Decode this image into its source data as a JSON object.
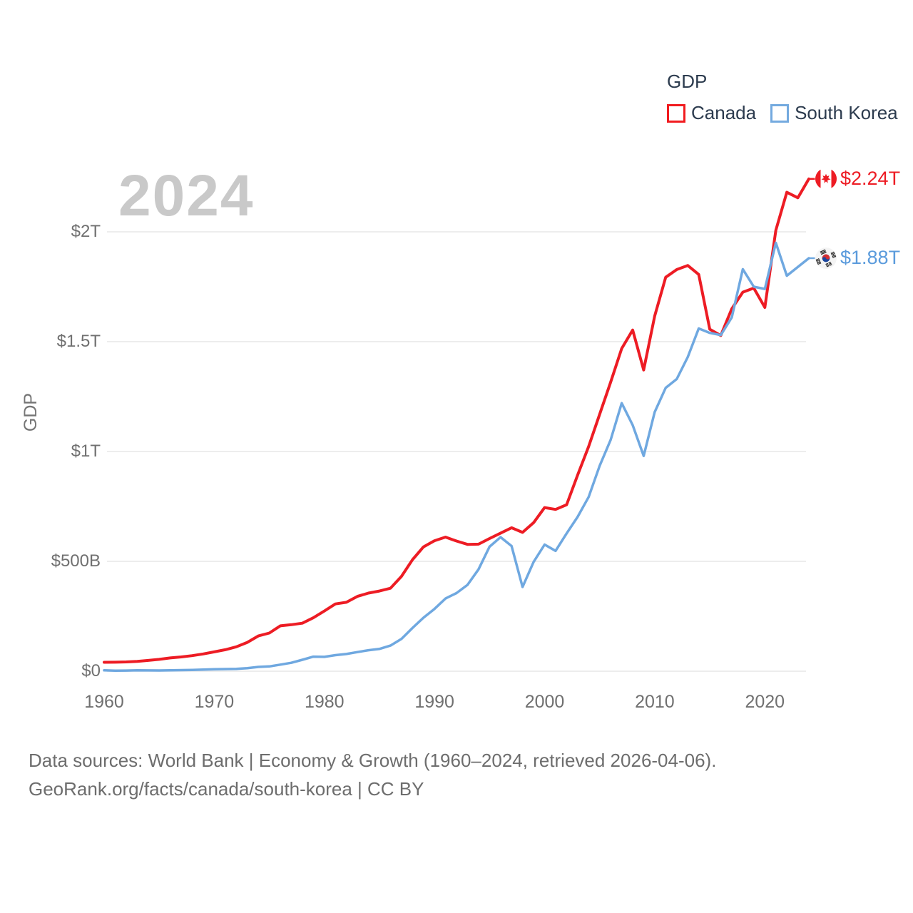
{
  "legend": {
    "title": "GDP",
    "items": [
      {
        "label": "Canada",
        "color": "#ed1c24"
      },
      {
        "label": "South Korea",
        "color": "#74aadf"
      }
    ]
  },
  "watermark_year": "2024",
  "footer": {
    "line1": "Data sources: World Bank | Economy & Growth (1960–2024, retrieved 2026-04-06).",
    "line2": "GeoRank.org/facts/canada/south-korea | CC BY"
  },
  "chart_data": {
    "type": "line",
    "title": "GDP",
    "ylabel": "GDP",
    "unit": "billion USD",
    "grid": "horizontal",
    "ylim_billion": [
      0,
      2300
    ],
    "xlim_year": [
      1960,
      2024
    ],
    "y_ticks": [
      {
        "label": "$0",
        "value": 0
      },
      {
        "label": "$500B",
        "value": 500
      },
      {
        "label": "$1T",
        "value": 1000
      },
      {
        "label": "$1.5T",
        "value": 1500
      },
      {
        "label": "$2T",
        "value": 2000
      }
    ],
    "x_ticks": [
      {
        "label": "1960",
        "year": 1960
      },
      {
        "label": "1970",
        "year": 1970
      },
      {
        "label": "1980",
        "year": 1980
      },
      {
        "label": "1990",
        "year": 1990
      },
      {
        "label": "2000",
        "year": 2000
      },
      {
        "label": "2010",
        "year": 2010
      },
      {
        "label": "2020",
        "year": 2020
      }
    ],
    "years": [
      1960,
      1961,
      1962,
      1963,
      1964,
      1965,
      1966,
      1967,
      1968,
      1969,
      1970,
      1971,
      1972,
      1973,
      1974,
      1975,
      1976,
      1977,
      1978,
      1979,
      1980,
      1981,
      1982,
      1983,
      1984,
      1985,
      1986,
      1987,
      1988,
      1989,
      1990,
      1991,
      1992,
      1993,
      1994,
      1995,
      1996,
      1997,
      1998,
      1999,
      2000,
      2001,
      2002,
      2003,
      2004,
      2005,
      2006,
      2007,
      2008,
      2009,
      2010,
      2011,
      2012,
      2013,
      2014,
      2015,
      2016,
      2017,
      2018,
      2019,
      2020,
      2021,
      2022,
      2023,
      2024
    ],
    "series": [
      {
        "name": "Canada",
        "color": "#ed1c24",
        "line_width": 4,
        "end_label": "$2.24T",
        "flag_icon": "canada-flag-icon",
        "values_billion_usd": [
          40.5,
          40.9,
          42.2,
          44.7,
          48.9,
          53.9,
          60.4,
          64.8,
          70.8,
          78.5,
          87.9,
          97.6,
          110.9,
          131.3,
          160.4,
          173.8,
          206.6,
          211.6,
          218.5,
          243.1,
          273.9,
          306.2,
          313.5,
          340.5,
          355.4,
          364.8,
          377.7,
          431.5,
          507.4,
          565.8,
          593.9,
          610.3,
          592.4,
          577.2,
          578.1,
          604,
          628.5,
          652.8,
          631.8,
          676.1,
          744.8,
          736.4,
          757.9,
          892.4,
          1023.2,
          1169.4,
          1315.5,
          1468.8,
          1552.9,
          1371.2,
          1617.3,
          1793.3,
          1828.4,
          1846.6,
          1805.7,
          1556.5,
          1527.9,
          1649.3,
          1725.3,
          1743.7,
          1655.7,
          2007,
          2180,
          2155,
          2241
        ]
      },
      {
        "name": "South Korea",
        "color": "#6fa8e0",
        "line_width": 3.5,
        "end_label": "$1.88T",
        "flag_icon": "south-korea-flag-icon",
        "values_billion_usd": [
          4,
          2.4,
          2.8,
          3.9,
          3.6,
          3.1,
          3.9,
          4.8,
          6,
          7.5,
          9,
          9.9,
          10.8,
          13.9,
          19.5,
          21.7,
          29.8,
          38.3,
          51.9,
          66.2,
          65.4,
          72.9,
          78.3,
          87,
          95.6,
          101.3,
          116.6,
          146.6,
          196.6,
          243.5,
          283.4,
          330.7,
          355.5,
          392.7,
          463.6,
          566.6,
          610.2,
          569.8,
          383.3,
          497.5,
          576.2,
          547.7,
          627.2,
          702.7,
          793.1,
          934.9,
          1053,
          1220,
          1120,
          980,
          1180,
          1290,
          1330,
          1430,
          1560,
          1540,
          1530,
          1610,
          1830,
          1750,
          1740,
          1950,
          1800,
          1840,
          1880
        ]
      }
    ],
    "legend_position": "top-right"
  }
}
